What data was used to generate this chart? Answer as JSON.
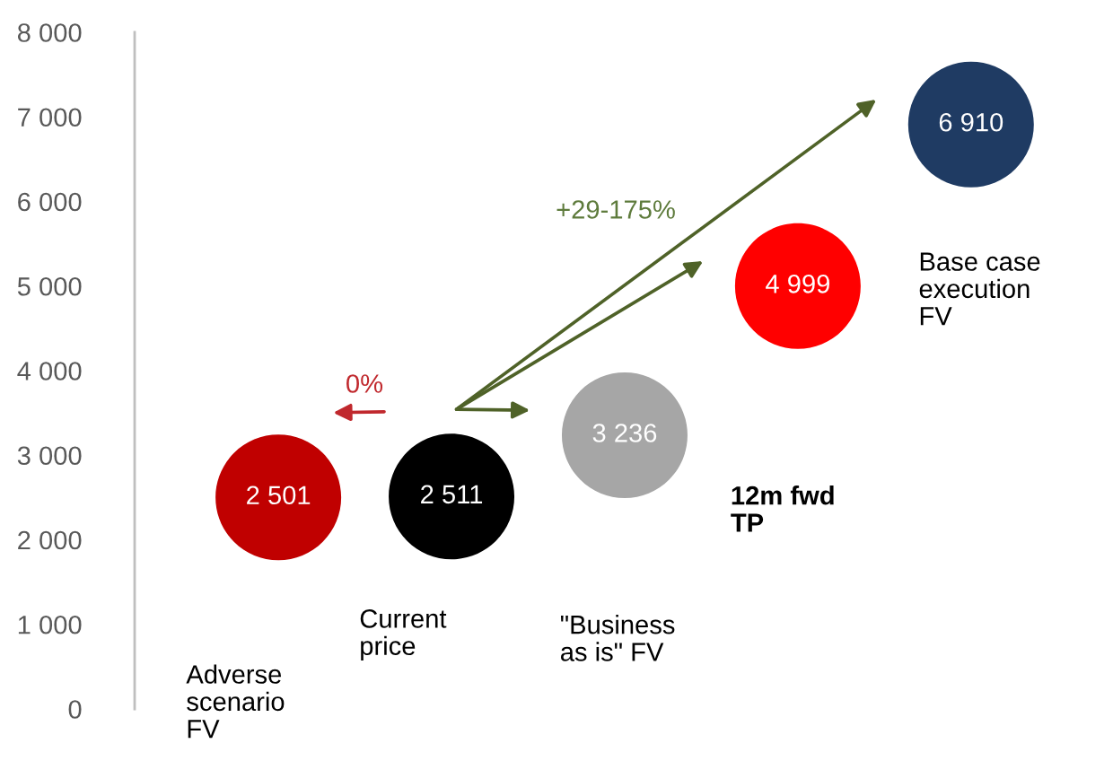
{
  "chart_data": {
    "type": "scatter",
    "categories": [
      "Adverse\nscenario\nFV",
      "Current\nprice",
      "\"Business\nas is\" FV",
      "12m fwd\nTP",
      "Base case\nexecution\nFV"
    ],
    "values": [
      2501,
      2511,
      3236,
      4999,
      6910
    ],
    "colors": [
      "#c00000",
      "#000000",
      "#a6a6a6",
      "#ff0000",
      "#1f3b63"
    ],
    "value_labels": [
      "2 501",
      "2 511",
      "3 236",
      "4 999",
      "6 910"
    ],
    "marker": "circle",
    "ylim": [
      0,
      8000
    ],
    "yticks": [
      0,
      {
        "value": 1000,
        "label": "1 000"
      },
      {
        "value": 2000,
        "label": "2 000"
      },
      {
        "value": 3000,
        "label": "3 000"
      },
      {
        "value": 4000,
        "label": "4 000"
      },
      {
        "value": 5000,
        "label": "5 000"
      },
      {
        "value": 6000,
        "label": "6 000"
      },
      {
        "value": 7000,
        "label": "7 000"
      },
      {
        "value": 8000,
        "label": "8 000"
      }
    ],
    "annotations": [
      "0%",
      "+29-175%"
    ]
  }
}
